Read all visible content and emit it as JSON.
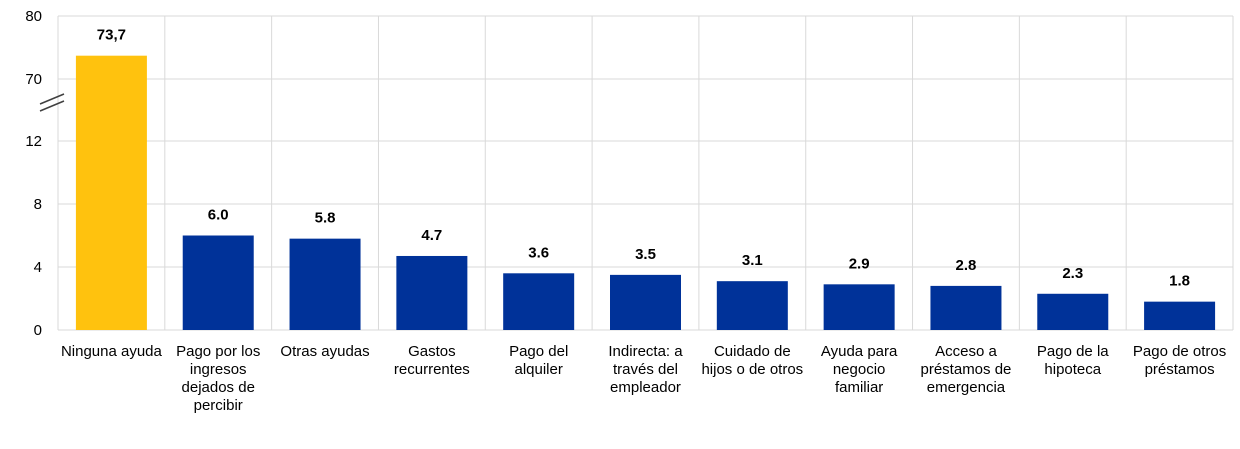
{
  "chart_data": {
    "type": "bar",
    "categories": [
      "Ninguna ayuda",
      "Pago por los ingresos dejados de percibir",
      "Otras ayudas",
      "Gastos recurrentes",
      "Pago del alquiler",
      "Indirecta: a través del empleador",
      "Cuidado de hijos o de otros",
      "Ayuda para negocio familiar",
      "Acceso a préstamos de emergencia",
      "Pago de la hipoteca",
      "Pago de otros préstamos"
    ],
    "values": [
      73.7,
      6.0,
      5.8,
      4.7,
      3.6,
      3.5,
      3.1,
      2.9,
      2.8,
      2.3,
      1.8
    ],
    "value_labels": [
      "73,7",
      "6.0",
      "5.8",
      "4.7",
      "3.6",
      "3.5",
      "3.1",
      "2.9",
      "2.8",
      "2.3",
      "1.8"
    ],
    "highlight_index": 0,
    "colors": {
      "highlight": "#FFC20E",
      "bar": "#003299",
      "grid": "#D9D9D9"
    },
    "y_axis": {
      "lower_ticks": [
        0,
        4,
        8,
        12
      ],
      "upper_ticks": [
        70,
        80
      ],
      "lower_range": [
        0,
        12
      ],
      "upper_range": [
        70,
        80
      ],
      "break": "between 12 and 70"
    },
    "title": "",
    "xlabel": "",
    "ylabel": ""
  }
}
